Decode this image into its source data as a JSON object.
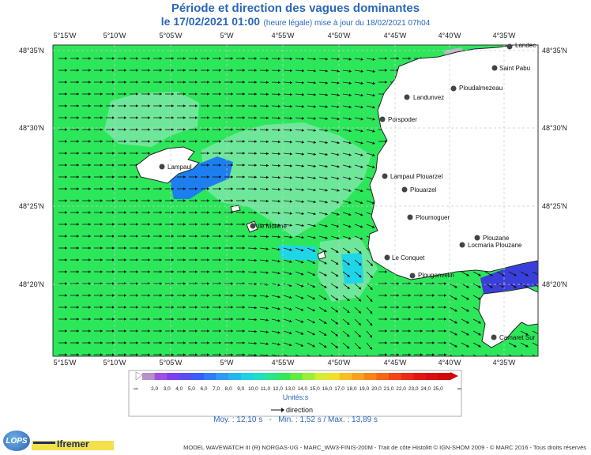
{
  "header": {
    "title": "Période et direction des vagues dominantes",
    "date": "le 17/02/2021 01:00",
    "update": "(heure légale) mise à jour du 18/02/2021 07h04"
  },
  "map": {
    "lon_ticks": [
      "5°15'W",
      "5°10'W",
      "5°05'W",
      "5°W",
      "4°55'W",
      "4°50'W",
      "4°45'W",
      "4°40'W",
      "4°35'W"
    ],
    "lat_ticks": [
      "48°35'N",
      "48°30'N",
      "48°25'N",
      "48°20'N"
    ],
    "places": [
      {
        "name": "Landec"
      },
      {
        "name": "Saint Pabu"
      },
      {
        "name": "Ploudalmezeau"
      },
      {
        "name": "Landunvez"
      },
      {
        "name": "Porspoder"
      },
      {
        "name": "Lampaul"
      },
      {
        "name": "Lampaul Plouarzel"
      },
      {
        "name": "Plouarzel"
      },
      {
        "name": "Ploumoguer"
      },
      {
        "name": "Ile Molene"
      },
      {
        "name": "Plouzane"
      },
      {
        "name": "Locmaria Plouzane"
      },
      {
        "name": "Le Conquet"
      },
      {
        "name": "Plougonvelin"
      },
      {
        "name": "Camaret Sur"
      }
    ],
    "colors": {
      "land": "#ffffff",
      "sea_main": "#2de75a",
      "sea_light": "#6fe79a",
      "sea_cyan": "#1fd6e8",
      "sea_blue": "#1d7ef0",
      "sea_dark": "#3a3fdc",
      "sea_grey": "#b8b8c8",
      "coast": "#222222",
      "arrow": "#111111",
      "grid": "#cccccc"
    }
  },
  "legend": {
    "ticks": [
      "2,0",
      "3,0",
      "4,0",
      "5,0",
      "6,0",
      "7,0",
      "8,0",
      "9,0",
      "10,0",
      "11,0",
      "12,0",
      "13,0",
      "14,0",
      "15,0",
      "16,0",
      "17,0",
      "18,0",
      "19,0",
      "20,0",
      "21,0",
      "22,0",
      "23,0",
      "24,0",
      "25,0"
    ],
    "colors": [
      "#b98fc8",
      "#a050e0",
      "#8040f0",
      "#5a4cf2",
      "#3b5cf6",
      "#2f7df6",
      "#2f9af4",
      "#22b6f0",
      "#1cd2e6",
      "#1ce0c0",
      "#2ae68a",
      "#30e85a",
      "#60ec40",
      "#9cee38",
      "#d2ee30",
      "#f2e028",
      "#f6c020",
      "#f8a21c",
      "#f88418",
      "#f66416",
      "#f24414",
      "#ea2a14",
      "#e01810",
      "#d80e0e",
      "#d00808"
    ],
    "low": "-∞",
    "high": "∞",
    "units": "Unités:s",
    "direction": "direction"
  },
  "stats": {
    "mean": "Moy. : 12,10 s",
    "separator": "-",
    "minmax": "Min. : 1,52 s / Max. : 13,89 s"
  },
  "footer": "MODEL WAVEWATCH III (R) NORGAS-UG - MARC_WW3-FINIS-200M -  Trait de côte Histolitt © IGN-SHOM 2009 - © MARC 2016 - Tous droits réservés",
  "logos": {
    "lops": "LOPS",
    "ifremer": "Ifremer"
  }
}
